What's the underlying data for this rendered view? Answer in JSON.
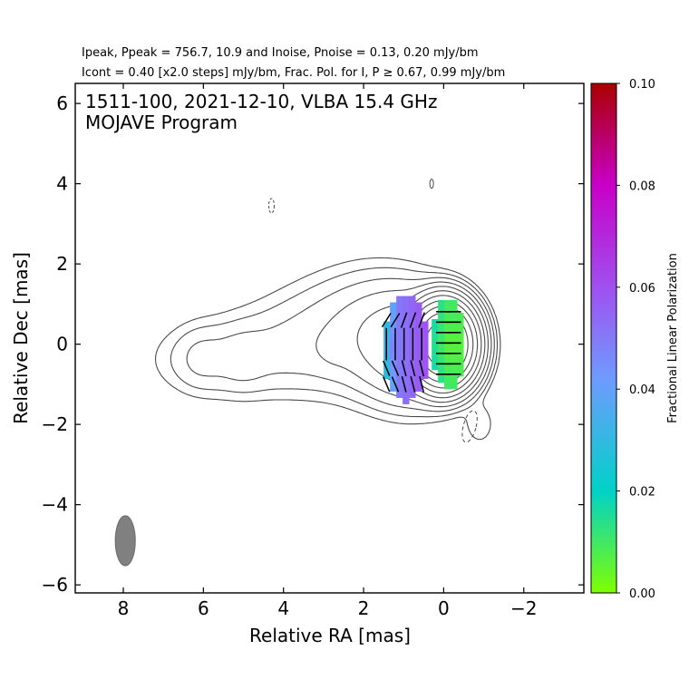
{
  "chart_data": {
    "type": "contour",
    "header_line1": "Ipeak, Ppeak = 756.7, 10.9 and Inoise, Pnoise = 0.13, 0.20 mJy/bm",
    "header_line2": "Icont = 0.40 [x2.0 steps] mJy/bm, Frac. Pol. for I, P ≥ 0.67, 0.99 mJy/bm",
    "title_line1": "1511-100, 2021-12-10, VLBA 15.4 GHz",
    "title_line2": "MOJAVE Program",
    "xlabel": "Relative RA [mas]",
    "ylabel": "Relative Dec [mas]",
    "xlim": [
      9.2,
      -3.5
    ],
    "ylim": [
      -6.2,
      6.5
    ],
    "xticks": [
      8,
      6,
      4,
      2,
      0,
      -2
    ],
    "yticks": [
      6,
      4,
      2,
      0,
      -2,
      -4,
      -6
    ],
    "colorbar": {
      "label": "Fractional Linear Polarization",
      "range": [
        0.0,
        0.1
      ],
      "ticks": [
        "0.10",
        "0.08",
        "0.06",
        "0.04",
        "0.02",
        "0.00"
      ],
      "colors": [
        "#7fff00",
        "#00d2c8",
        "#6e9bff",
        "#a050f0",
        "#c800c8",
        "#aa0000"
      ]
    },
    "beam": {
      "ra": 7.95,
      "dec": -4.9,
      "major_mas": 1.25,
      "minor_mas": 0.5,
      "pa_deg": 0
    },
    "core": {
      "ra": 0.0,
      "dec": 0.0
    },
    "polarized_regions": [
      {
        "component": "core",
        "ra_range": [
          -0.5,
          0.3
        ],
        "dec_range": [
          -1.1,
          1.1
        ],
        "frac_pol": 0.01
      },
      {
        "component": "inner-jet",
        "ra_range": [
          0.4,
          1.5
        ],
        "dec_range": [
          -1.4,
          1.2
        ],
        "frac_pol": 0.055
      }
    ],
    "contour_levels_mJy": [
      0.4,
      0.8,
      1.6,
      3.2,
      6.4,
      12.8,
      25.6,
      51.2,
      102.4,
      204.8,
      409.6
    ]
  }
}
